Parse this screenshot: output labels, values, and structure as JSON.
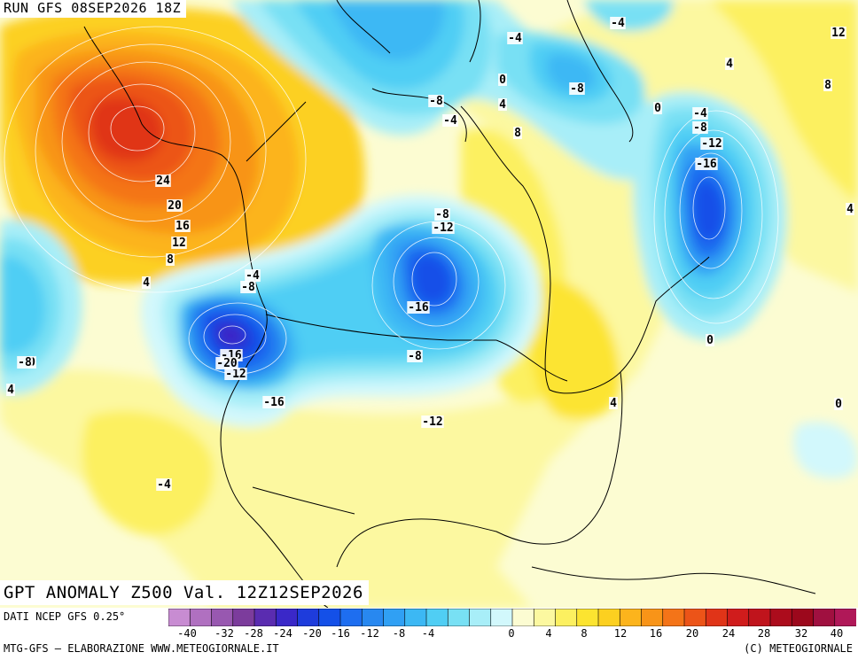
{
  "header": {
    "run": "RUN GFS 08SEP2026 18Z",
    "valid": "GPT ANOMALY Z500 Val. 12Z12SEP2026"
  },
  "footer": {
    "source": "DATI NCEP GFS 0.25°",
    "credit": "MTG-GFS – ELABORAZIONE WWW.METEOGIORNALE.IT",
    "copyright": "(C) METEOGIORNALE"
  },
  "colorbar": {
    "colors": [
      "#c88cd2",
      "#b070c0",
      "#9858b0",
      "#7c3c9c",
      "#5a2cb0",
      "#3a28c8",
      "#1e3cdc",
      "#1450e8",
      "#1e6ef0",
      "#2888f0",
      "#30a0f4",
      "#3cb8f4",
      "#50cef4",
      "#78e0f4",
      "#a8eef8",
      "#d2f8fc",
      "#fcfcd2",
      "#fcf8a0",
      "#fcf060",
      "#fce430",
      "#fcd020",
      "#fcb41c",
      "#f89418",
      "#f47418",
      "#ec5418",
      "#e03418",
      "#d01c1c",
      "#c0141c",
      "#ac0c1c",
      "#9c081c",
      "#a01040",
      "#b01858"
    ],
    "ticks": [
      "-40",
      "-32",
      "-28",
      "-24",
      "-20",
      "-16",
      "-12",
      "-8",
      "-4",
      "0",
      "4",
      "8",
      "12",
      "16",
      "20",
      "24",
      "28",
      "32",
      "40"
    ]
  },
  "map": {
    "anomaly_centers": [
      {
        "label": "24",
        "type": "ridge"
      },
      {
        "label": "-20",
        "type": "trough"
      },
      {
        "label": "-16",
        "type": "trough"
      },
      {
        "label": "-16",
        "type": "trough"
      },
      {
        "label": "-8",
        "type": "trough"
      }
    ],
    "contour_labels": [
      "24",
      "20",
      "16",
      "12",
      "8",
      "4",
      "-4",
      "-8",
      "-16",
      "-12",
      "-20",
      "-16",
      "-12",
      "-4",
      "0",
      "4",
      "-8",
      "-12",
      "-16",
      "-8",
      "0",
      "-4",
      "-8",
      "4",
      "8",
      "-4",
      "-8",
      "0",
      "-4",
      "-8",
      "-12",
      "-16",
      "4",
      "8",
      "12",
      "4",
      "0",
      "4",
      "0",
      "-4",
      "-8",
      "4",
      "4"
    ]
  }
}
